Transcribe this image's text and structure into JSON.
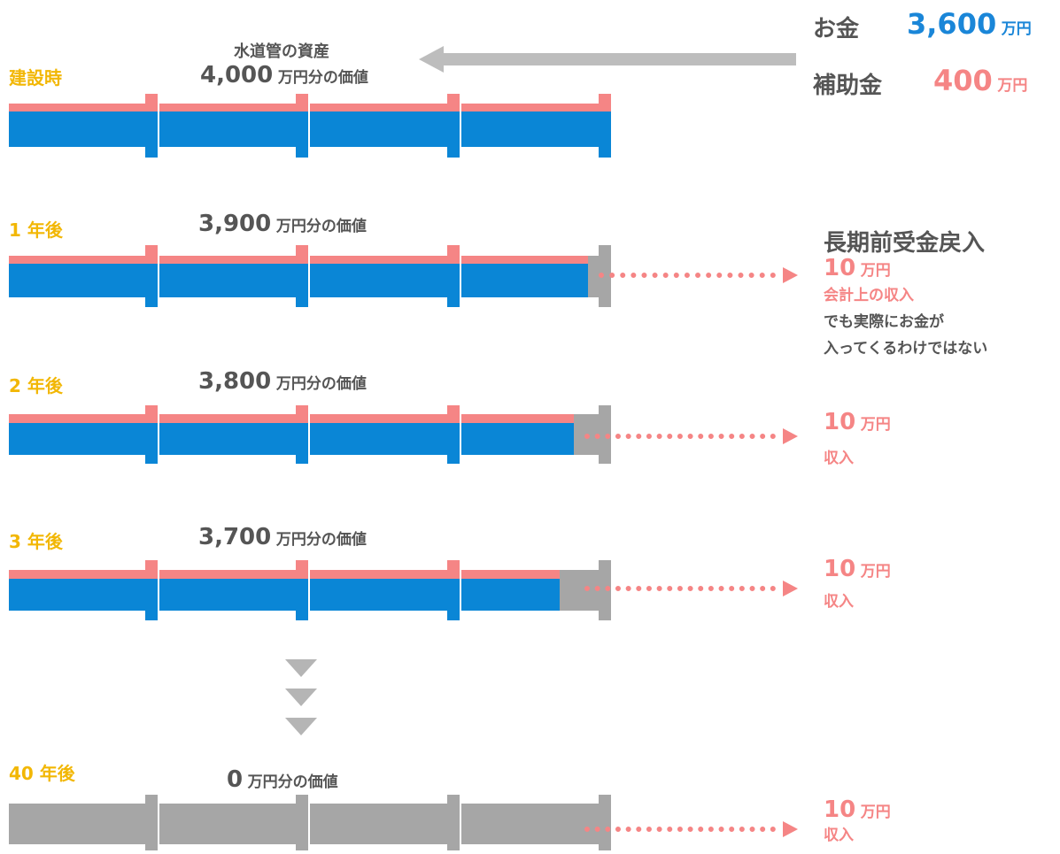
{
  "colors": {
    "blue": "#0a86d6",
    "pink": "#f58585",
    "gray": "#a6a6a6",
    "yellow": "#f2b705",
    "text": "#555555",
    "arrow": "#bdbdbd"
  },
  "header": {
    "asset_label": "水道管の資産",
    "money_label": "お金",
    "money_value": "3,600",
    "money_unit": "万円",
    "subsidy_label": "補助金",
    "subsidy_value": "400",
    "subsidy_unit": "万円"
  },
  "rows": [
    {
      "year": "建設時",
      "value": "4,000",
      "unit": "万円分の価値",
      "remaining_fraction": 1.0,
      "pink_fraction": 1.0
    },
    {
      "year": "1 年後",
      "value": "3,900",
      "unit": "万円分の価値",
      "remaining_fraction": 0.975,
      "pink_fraction": 1.0,
      "income_value": "10",
      "income_unit": "万円",
      "income_note": "会計上の収入"
    },
    {
      "year": "2 年後",
      "value": "3,800",
      "unit": "万円分の価値",
      "remaining_fraction": 0.95,
      "pink_fraction": 1.0,
      "income_value": "10",
      "income_unit": "万円",
      "income_note": "収入"
    },
    {
      "year": "3 年後",
      "value": "3,700",
      "unit": "万円分の価値",
      "remaining_fraction": 0.925,
      "pink_fraction": 1.0,
      "income_value": "10",
      "income_unit": "万円",
      "income_note": "収入"
    },
    {
      "year": "40 年後",
      "value": "0",
      "unit": "万円分の価値",
      "remaining_fraction": 0.0,
      "pink_fraction": 0.0,
      "income_value": "10",
      "income_unit": "万円",
      "income_note": "収入"
    }
  ],
  "side_note": {
    "title": "長期前受金戻入",
    "line1": "でも実際にお金が",
    "line2": "入ってくるわけではない"
  },
  "continuation_icon": "down-triangle-icon"
}
